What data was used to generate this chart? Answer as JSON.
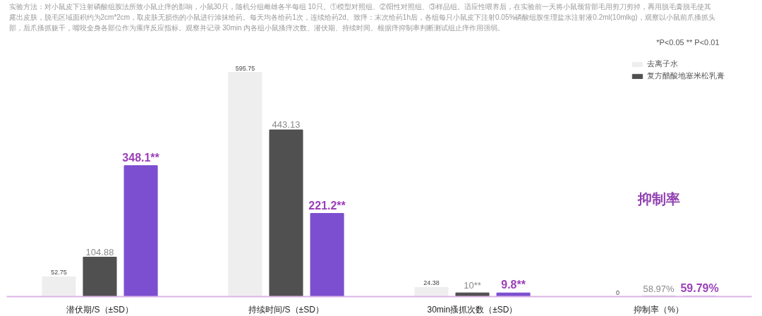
{
  "chart_data": {
    "type": "bar",
    "annotations": [
      "实验方法：对小鼠皮下注射磷酸组胺法所致小鼠止痒的影响，小鼠30只，随机分组雌雄各半每组 10只。①模型对照组、②阳性对照组、③样品组。适应性喂养后，在实验前一天将小鼠颈背部毛用剪刀剪掉，再用脱毛膏脱毛使其",
      "露出皮肤，脱毛区域面积约为2cm*2cm，取皮肤无损伤的小鼠进行涂抹给药。每天均各给药1次，连续给药2d。致痒：末次给药1h后，各组每只小鼠皮下注射0.05%磷酸组胺生理盐水注射液0.2ml(10mlkg)，观察以小鼠前爪搔抓头",
      "部，后爪搔抓躯干，嘴咬全身各部位作为瘙痒反应指标。观察并记录 30min 内各组小鼠搔痒次数、潜伏期、持续时间。根据痒抑制率判断测试组止痒作用强弱。",
      "*P<0.05 ** P<0.01",
      "抑制率"
    ],
    "categories": [
      "潜伏期/S（±SD）",
      "持续时间/S（±SD）",
      "30min搔抓次数（±SD）",
      "抑制率（%）"
    ],
    "series": [
      {
        "name": "去离子水",
        "color": "#eeeeee",
        "values": [
          52.75,
          595.75,
          24.38,
          0
        ],
        "value_labels": [
          "52.75",
          "595.75",
          "24.38",
          "0"
        ]
      },
      {
        "name": "复方醋酸地塞米松乳膏",
        "color": "#505050",
        "values": [
          104.88,
          443.13,
          10,
          0.5897
        ],
        "value_labels": [
          "104.88",
          "443.13",
          "10**",
          "58.97%"
        ]
      },
      {
        "color": "#7b4fcf",
        "values": [
          348.1,
          221.2,
          9.8,
          0.5979
        ],
        "value_labels": [
          "348.1**",
          "221.2**",
          "9.8**",
          "59.79%"
        ]
      }
    ],
    "tick_labels": "x",
    "legend": "top right"
  }
}
